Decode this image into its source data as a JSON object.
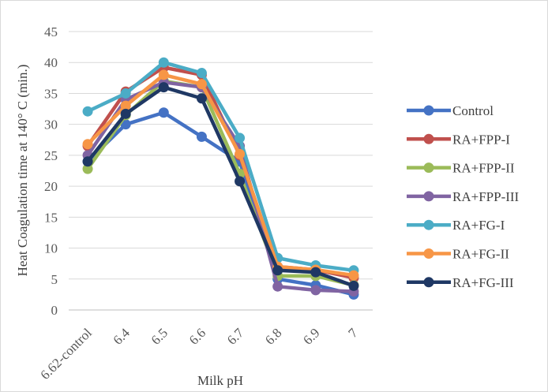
{
  "chart_data": {
    "type": "line",
    "xlabel": "Milk pH",
    "ylabel": "Heat Coagulation time at 140° C (min.)",
    "categories": [
      "6.62-control",
      "6.4",
      "6.5",
      "6.6",
      "6.7",
      "6.8",
      "6.9",
      "7"
    ],
    "ylim": [
      0,
      45
    ],
    "yticks": [
      0,
      5,
      10,
      15,
      20,
      25,
      30,
      35,
      40,
      45
    ],
    "grid": true,
    "legend_position": "right",
    "series": [
      {
        "name": "Control",
        "color": "#4472c4",
        "values": [
          24.0,
          30.0,
          31.9,
          28.0,
          24.0,
          5.0,
          4.0,
          2.5
        ]
      },
      {
        "name": "RA+FPP-I",
        "color": "#c0504d",
        "values": [
          26.5,
          35.3,
          39.2,
          38.0,
          25.0,
          7.0,
          6.5,
          5.2
        ]
      },
      {
        "name": "RA+FPP-II",
        "color": "#9bbb59",
        "values": [
          22.8,
          31.5,
          37.0,
          36.0,
          22.0,
          5.5,
          5.5,
          4.0
        ]
      },
      {
        "name": "RA+FPP-III",
        "color": "#8064a2",
        "values": [
          25.0,
          34.0,
          36.8,
          36.0,
          26.5,
          3.8,
          3.2,
          3.0
        ]
      },
      {
        "name": "RA+FG-I",
        "color": "#4bacc6",
        "values": [
          32.1,
          35.0,
          40.0,
          38.3,
          27.8,
          8.4,
          7.2,
          6.4
        ]
      },
      {
        "name": "RA+FG-II",
        "color": "#f79646",
        "values": [
          26.8,
          33.0,
          38.0,
          36.5,
          25.2,
          7.0,
          6.5,
          5.6
        ]
      },
      {
        "name": "RA+FG-III",
        "color": "#1f3864",
        "values": [
          24.0,
          31.7,
          36.0,
          34.2,
          20.8,
          6.4,
          6.1,
          3.9
        ]
      }
    ]
  }
}
